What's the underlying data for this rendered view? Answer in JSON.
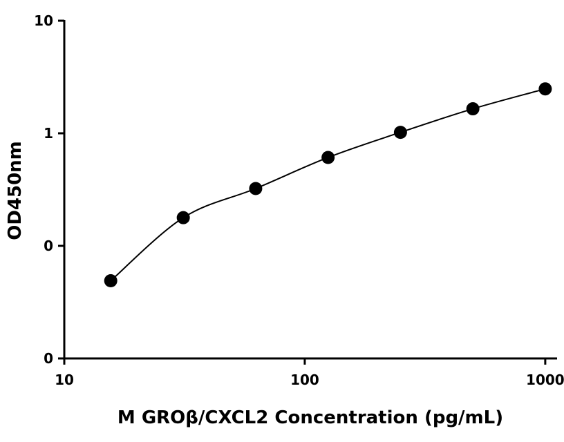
{
  "chart_data": {
    "type": "scatter",
    "title": "",
    "xlabel": "M GROβ/CXCL2 Concentration (pg/mL)",
    "ylabel": "OD450nm",
    "x_scale": "log",
    "y_scale": "log",
    "xlim": [
      10,
      1120
    ],
    "ylim": [
      0.01,
      10
    ],
    "x_ticks": [
      10,
      100,
      1000
    ],
    "x_tick_labels": [
      "10",
      "100",
      "1000"
    ],
    "y_ticks": [
      0.01,
      0.1,
      1,
      10
    ],
    "y_tick_labels": [
      "0",
      "0",
      "1",
      "10"
    ],
    "grid": false,
    "legend": "none",
    "marker_color": "#000000",
    "series": [
      {
        "x": [
          15.6,
          31.25,
          62.5,
          125,
          250,
          500,
          1000
        ],
        "y": [
          0.049,
          0.178,
          0.323,
          0.61,
          1.02,
          1.65,
          2.48
        ],
        "fit": "curve"
      }
    ]
  }
}
